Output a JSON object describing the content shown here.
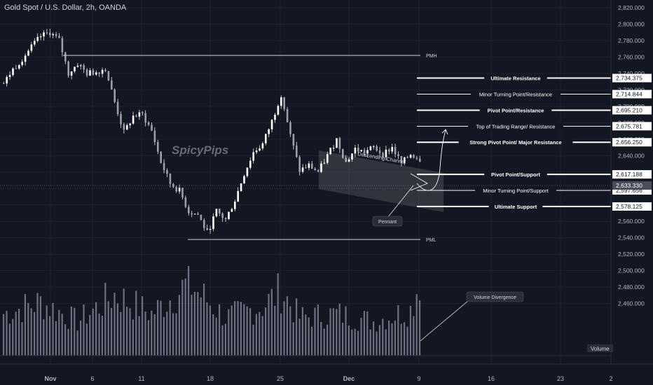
{
  "header": {
    "title": "Gold Spot / U.S. Dollar, 2h, OANDA"
  },
  "watermark": "SpicyPips",
  "chart_data": {
    "type": "candlestick",
    "title": "Gold Spot / U.S. Dollar, 2h, OANDA",
    "ylim": [
      2450,
      2825
    ],
    "y_ticks": [
      "2,820.000",
      "2,800.000",
      "2,780.000",
      "2,760.000",
      "2,740.000",
      "2,720.000",
      "2,700.000",
      "2,680.000",
      "2,660.000",
      "2,640.000",
      "2,620.000",
      "2,600.000",
      "2,580.000",
      "2,560.000",
      "2,540.000",
      "2,520.000",
      "2,500.000",
      "2,480.000",
      "2,460.000"
    ],
    "x_ticks": [
      "Nov",
      "6",
      "11",
      "18",
      "25",
      "Dec",
      "9",
      "16",
      "23",
      "2"
    ],
    "close_path": [
      [
        0,
        2728
      ],
      [
        3,
        2745
      ],
      [
        6,
        2758
      ],
      [
        9,
        2772
      ],
      [
        12,
        2785
      ],
      [
        15,
        2790
      ],
      [
        18,
        2780
      ],
      [
        21,
        2740
      ],
      [
        24,
        2752
      ],
      [
        27,
        2740
      ],
      [
        30,
        2742
      ],
      [
        33,
        2746
      ],
      [
        36,
        2705
      ],
      [
        39,
        2668
      ],
      [
        42,
        2688
      ],
      [
        45,
        2690
      ],
      [
        48,
        2670
      ],
      [
        51,
        2632
      ],
      [
        54,
        2606
      ],
      [
        57,
        2597
      ],
      [
        60,
        2572
      ],
      [
        63,
        2568
      ],
      [
        66,
        2546
      ],
      [
        69,
        2572
      ],
      [
        72,
        2562
      ],
      [
        75,
        2586
      ],
      [
        78,
        2618
      ],
      [
        81,
        2644
      ],
      [
        84,
        2654
      ],
      [
        87,
        2682
      ],
      [
        90,
        2715
      ],
      [
        93,
        2664
      ],
      [
        96,
        2622
      ],
      [
        99,
        2628
      ],
      [
        102,
        2620
      ],
      [
        105,
        2640
      ],
      [
        108,
        2660
      ],
      [
        111,
        2632
      ],
      [
        114,
        2648
      ],
      [
        117,
        2644
      ],
      [
        120,
        2650
      ],
      [
        123,
        2642
      ],
      [
        126,
        2650
      ],
      [
        129,
        2630
      ],
      [
        132,
        2642
      ],
      [
        135,
        2636
      ]
    ],
    "volume_path": [
      [
        0,
        0.55
      ],
      [
        12,
        0.7
      ],
      [
        24,
        0.45
      ],
      [
        36,
        0.8
      ],
      [
        48,
        0.55
      ],
      [
        60,
        0.95
      ],
      [
        72,
        0.5
      ],
      [
        84,
        0.65
      ],
      [
        90,
        0.85
      ],
      [
        96,
        0.5
      ],
      [
        108,
        0.55
      ],
      [
        120,
        0.45
      ],
      [
        132,
        0.6
      ],
      [
        135,
        1.0
      ]
    ],
    "levels": [
      {
        "label": "Ultimate Resistance",
        "value": 2734.375,
        "tag": "2,734.375",
        "bold": true
      },
      {
        "label": "Minor Turning Point/Resistance",
        "value": 2714.844,
        "tag": "2,714.844",
        "bold": false
      },
      {
        "label": "Pivot Point/Resistance",
        "value": 2695.21,
        "tag": "2,695.210",
        "bold": true
      },
      {
        "label": "Top of Trading Range/ Resistance",
        "value": 2675.781,
        "tag": "2,675.781",
        "bold": false
      },
      {
        "label": "Strong Pivot Point/ Major Resistance",
        "value": 2656.25,
        "tag": "2,656.250",
        "bold": true
      },
      {
        "label": "Pivot Point/Support",
        "value": 2617.188,
        "tag": "2,617.188",
        "bold": true
      },
      {
        "label": "Minor Turning Point/Support",
        "value": 2597.656,
        "tag": "2,597.656",
        "bold": false
      },
      {
        "label": "Ultimate Support",
        "value": 2578.125,
        "tag": "2,578.125",
        "bold": true
      }
    ],
    "current_price": "2,633.330",
    "pmh": {
      "label": "PMH",
      "value": 2762
    },
    "pml": {
      "label": "PML",
      "value": 2538
    },
    "annotations": {
      "channel": "Descending Channel",
      "pennant": "Pennant",
      "volume_div": "Volume Divergence",
      "volume_label": "Volume"
    },
    "colors": {
      "bg": "#131722",
      "candles": "#e8e8e8",
      "grid": "#1f2330",
      "level": "#ffffff"
    }
  }
}
